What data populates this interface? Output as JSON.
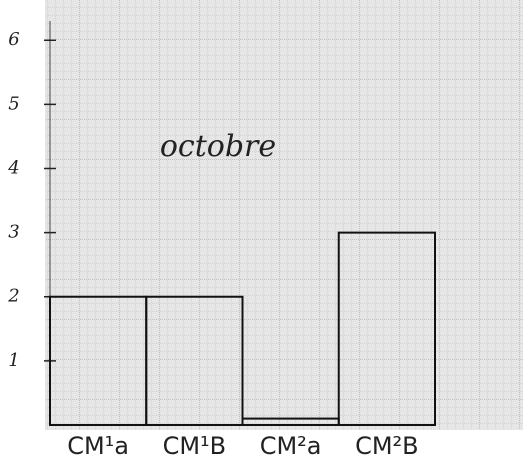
{
  "chart_data": {
    "type": "bar",
    "title": "octobre",
    "categories": [
      "CM¹a",
      "CM¹B",
      "CM²a",
      "CM²B"
    ],
    "values": [
      2,
      2,
      0.1,
      3
    ],
    "color": "#111111",
    "ylim": [
      0,
      6.3
    ],
    "yticks": [
      1,
      2,
      3,
      4,
      5,
      6
    ]
  }
}
